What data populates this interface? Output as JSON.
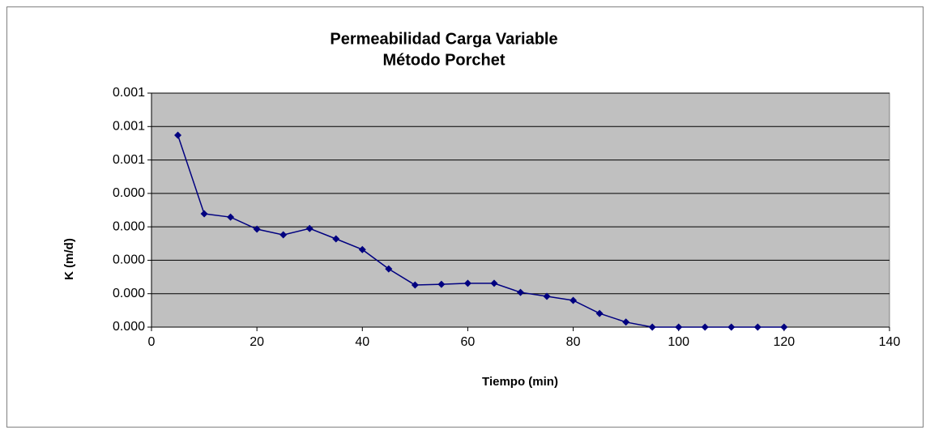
{
  "chart_data": {
    "type": "line",
    "title": [
      "Permeabilidad Carga Variable",
      "Método Porchet"
    ],
    "x_label": "Tiempo (min)",
    "y_label": "K (m/d)",
    "x": [
      5,
      10,
      15,
      20,
      25,
      30,
      35,
      40,
      45,
      50,
      55,
      60,
      65,
      70,
      75,
      80,
      85,
      90,
      95,
      100,
      105,
      110,
      115,
      120
    ],
    "series": [
      {
        "name": "K",
        "color": "#000080",
        "values": [
          0.000574,
          0.000339,
          0.000329,
          0.000293,
          0.000276,
          0.000295,
          0.000264,
          0.000232,
          0.000174,
          0.000126,
          0.000128,
          0.000131,
          0.000131,
          0.000104,
          9.2e-05,
          8e-05,
          4.1e-05,
          1.5e-05,
          0,
          0,
          0,
          0,
          0,
          0
        ]
      }
    ],
    "xlim": [
      0,
      140
    ],
    "xticks": [
      0,
      20,
      40,
      60,
      80,
      100,
      120,
      140
    ],
    "ylim": [
      0,
      0.0007
    ],
    "yticks": [
      {
        "value": 0,
        "label": "0.000"
      },
      {
        "value": 0.0001,
        "label": "0.000"
      },
      {
        "value": 0.0002,
        "label": "0.000"
      },
      {
        "value": 0.0003,
        "label": "0.000"
      },
      {
        "value": 0.0004,
        "label": "0.000"
      },
      {
        "value": 0.0005,
        "label": "0.001"
      },
      {
        "value": 0.0006,
        "label": "0.001"
      },
      {
        "value": 0.0007,
        "label": "0.001"
      }
    ],
    "grid": true,
    "plot_background": "#c0c0c0"
  }
}
